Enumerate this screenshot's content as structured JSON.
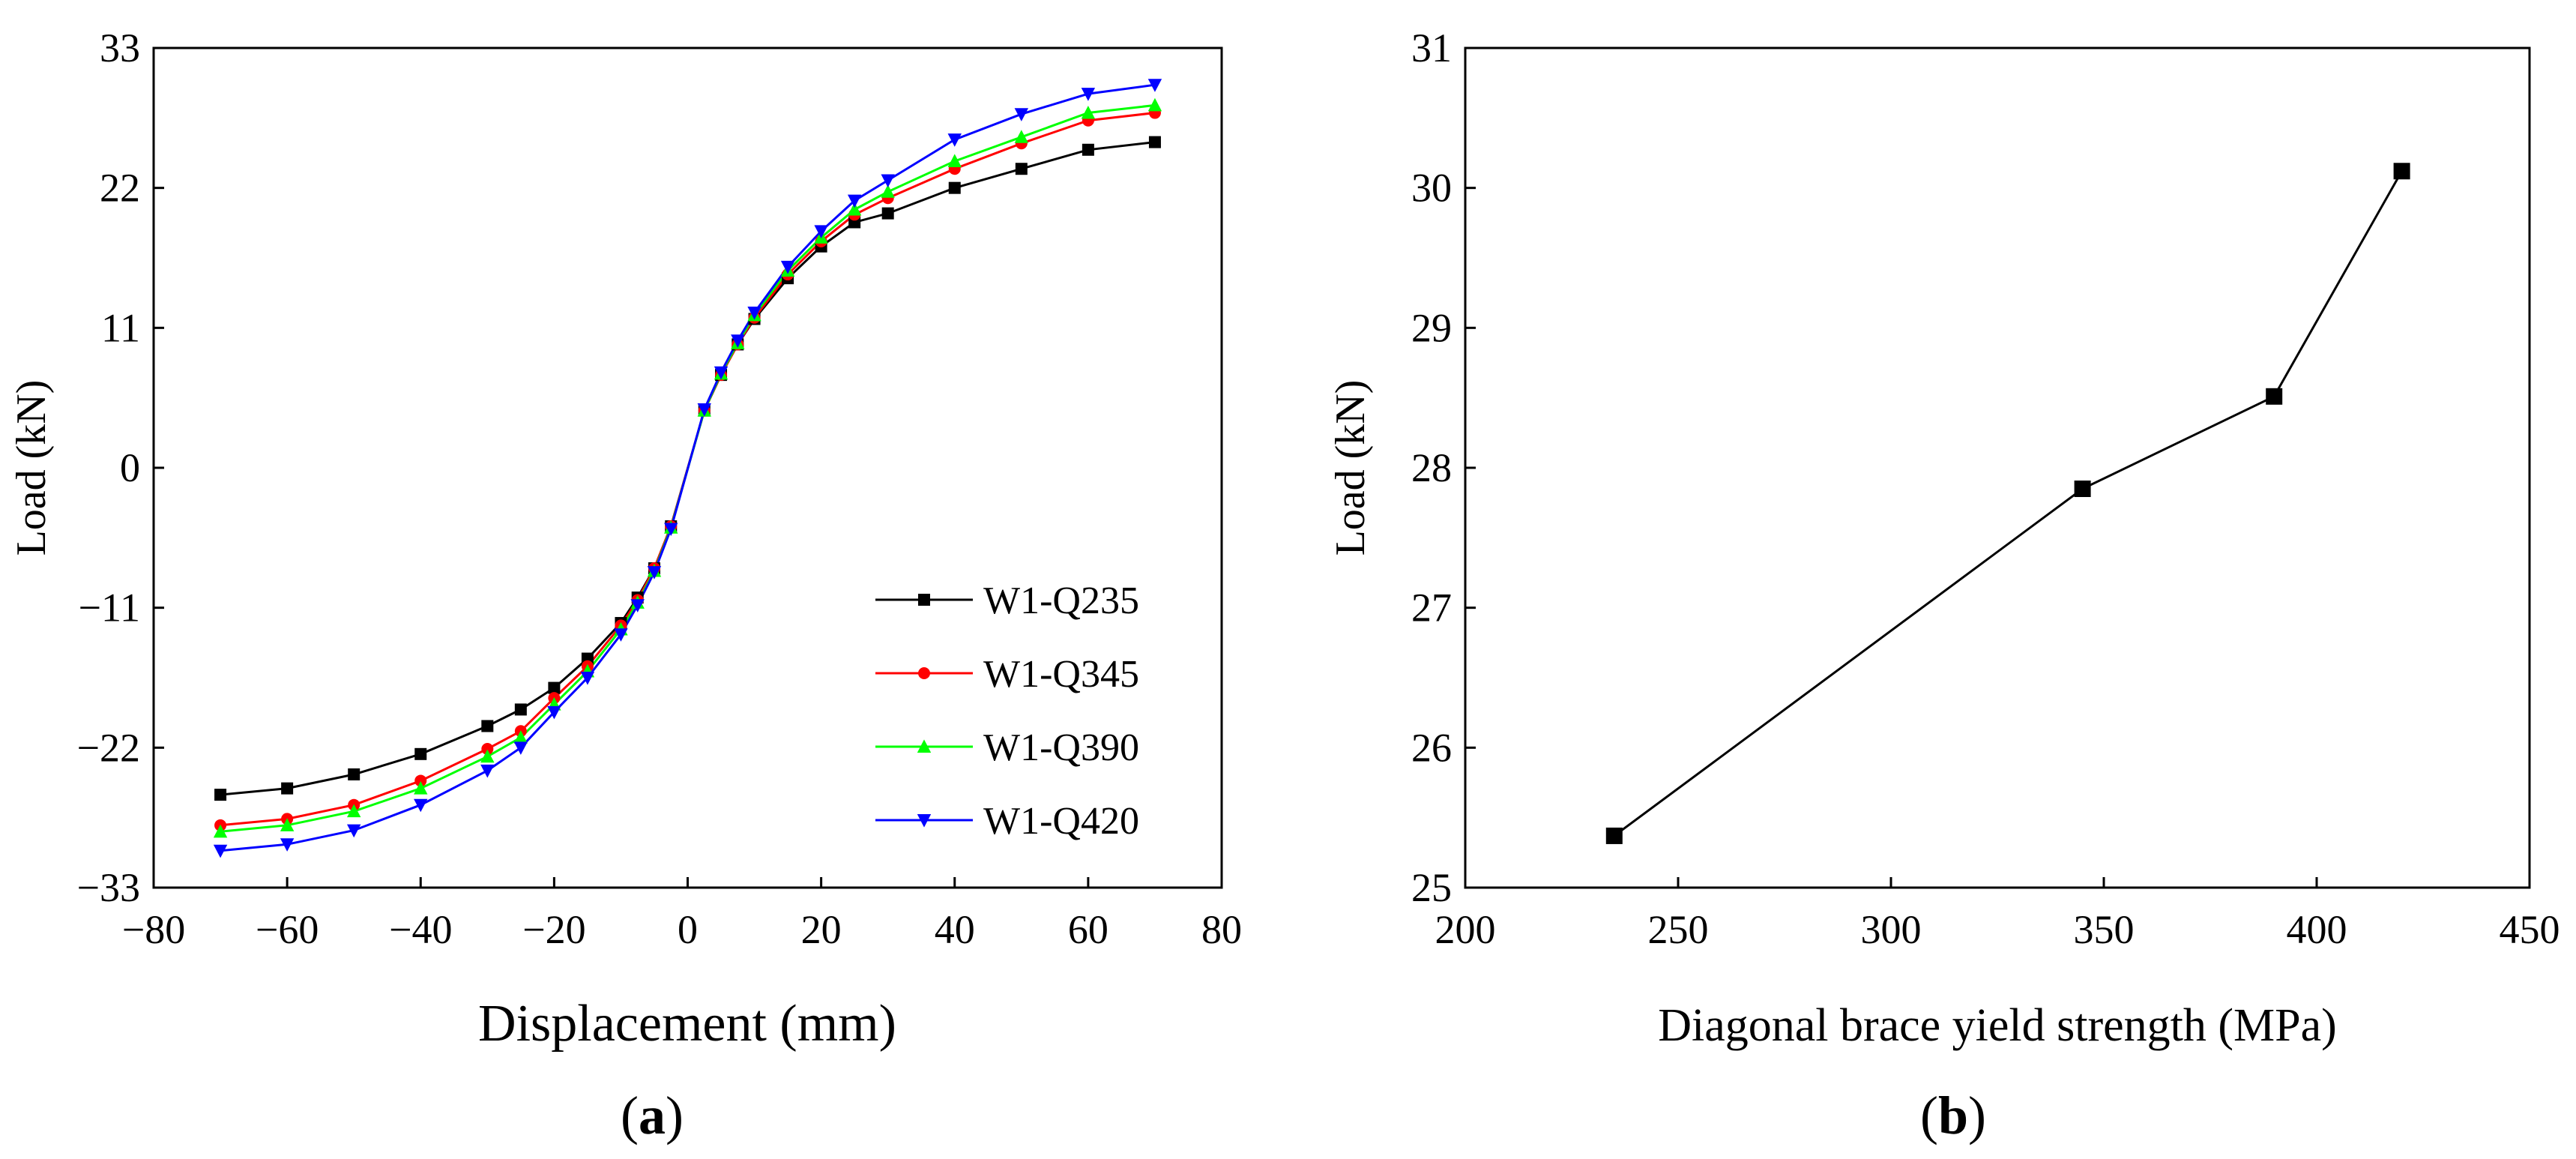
{
  "chart_data": [
    {
      "type": "line",
      "panel_label": "a",
      "title": "",
      "xlabel": "Displacement (mm)",
      "ylabel": "Load (kN)",
      "xlim": [
        -80,
        80
      ],
      "ylim": [
        -33,
        33
      ],
      "x_ticks": [
        -80,
        -60,
        -40,
        -20,
        0,
        20,
        40,
        60,
        80
      ],
      "x_tick_labels": [
        "−80",
        "−60",
        "−40",
        "−20",
        "0",
        "20",
        "40",
        "60",
        "80"
      ],
      "y_ticks": [
        -33,
        -22,
        -11,
        0,
        11,
        22,
        33
      ],
      "y_tick_labels": [
        "−33",
        "−22",
        "−11",
        "0",
        "11",
        "22",
        "33"
      ],
      "grid": false,
      "legend_position": "lower-right",
      "x": [
        -70,
        -60,
        -50,
        -40,
        -30,
        -25,
        -20,
        -15,
        -10,
        -7.5,
        -5,
        -2.5,
        2.5,
        5,
        7.5,
        10,
        15,
        20,
        25,
        30,
        40,
        50,
        60,
        70
      ],
      "series": [
        {
          "name": "W1-Q235",
          "color": "#000000",
          "marker": "square",
          "values": [
            -25.7,
            -25.2,
            -24.1,
            -22.5,
            -20.3,
            -19.0,
            -17.3,
            -15.0,
            -12.2,
            -10.2,
            -7.9,
            -4.6,
            4.5,
            7.3,
            9.7,
            11.7,
            14.9,
            17.4,
            19.3,
            20.0,
            22.0,
            23.5,
            25.0,
            25.6
          ]
        },
        {
          "name": "W1-Q345",
          "color": "#ff0000",
          "marker": "circle",
          "values": [
            -28.1,
            -27.6,
            -26.5,
            -24.6,
            -22.1,
            -20.7,
            -18.1,
            -15.6,
            -12.4,
            -10.4,
            -7.9,
            -4.6,
            4.5,
            7.3,
            9.7,
            11.8,
            15.2,
            17.8,
            19.9,
            21.2,
            23.5,
            25.5,
            27.3,
            27.9
          ]
        },
        {
          "name": "W1-Q390",
          "color": "#00ff00",
          "marker": "triangle-up",
          "values": [
            -28.6,
            -28.1,
            -27.0,
            -25.2,
            -22.7,
            -21.2,
            -18.6,
            -16.0,
            -12.7,
            -10.6,
            -8.1,
            -4.7,
            4.5,
            7.4,
            9.8,
            12.0,
            15.5,
            18.1,
            20.3,
            21.7,
            24.1,
            26.0,
            27.9,
            28.5
          ]
        },
        {
          "name": "W1-Q420",
          "color": "#0000ff",
          "marker": "triangle-down",
          "values": [
            -30.1,
            -29.6,
            -28.5,
            -26.5,
            -23.8,
            -22.0,
            -19.2,
            -16.5,
            -13.1,
            -10.8,
            -8.2,
            -4.8,
            4.6,
            7.5,
            10.0,
            12.2,
            15.8,
            18.6,
            21.0,
            22.6,
            25.8,
            27.8,
            29.4,
            30.1
          ]
        }
      ]
    },
    {
      "type": "line",
      "panel_label": "b",
      "title": "",
      "xlabel": "Diagonal brace yield strength (MPa)",
      "ylabel": "Load (kN)",
      "xlim": [
        200,
        450
      ],
      "ylim": [
        25,
        31
      ],
      "x_ticks": [
        200,
        250,
        300,
        350,
        400,
        450
      ],
      "x_tick_labels": [
        "200",
        "250",
        "300",
        "350",
        "400",
        "450"
      ],
      "y_ticks": [
        25,
        26,
        27,
        28,
        29,
        30,
        31
      ],
      "y_tick_labels": [
        "25",
        "26",
        "27",
        "28",
        "29",
        "30",
        "31"
      ],
      "grid": false,
      "x": [
        235,
        345,
        390,
        420
      ],
      "series": [
        {
          "name": "Load",
          "color": "#000000",
          "marker": "square",
          "values": [
            25.37,
            27.85,
            28.51,
            30.12
          ]
        }
      ]
    }
  ]
}
